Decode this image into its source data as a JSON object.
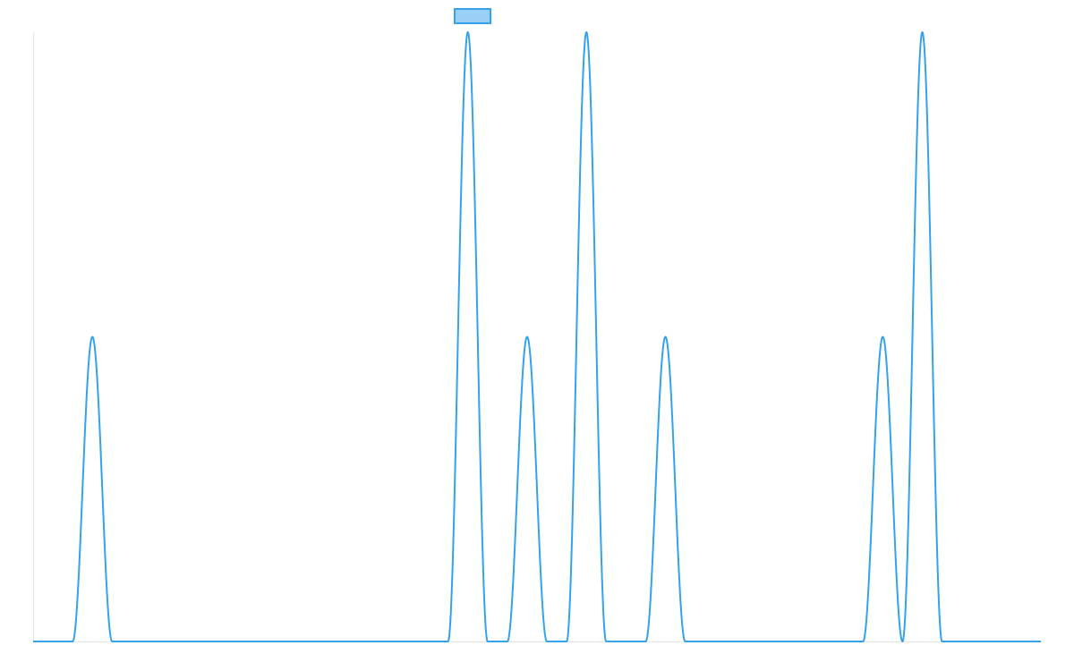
{
  "chart_data": {
    "type": "line",
    "title": "",
    "xlabel": "",
    "ylabel": "",
    "grid": false,
    "legend": "top-center",
    "colors": {
      "line": "#36a2eb",
      "legend_fill": "#9ad0f5",
      "axis": "#e5e5e5"
    },
    "xlim": [
      0,
      51
    ],
    "ylim": [
      0,
      2
    ],
    "series": [
      {
        "name": "",
        "peaks": [
          {
            "x": 3,
            "height": 1,
            "width": 2
          },
          {
            "x": 22,
            "height": 2,
            "width": 2
          },
          {
            "x": 25,
            "height": 1,
            "width": 2
          },
          {
            "x": 28,
            "height": 2,
            "width": 2
          },
          {
            "x": 32,
            "height": 1,
            "width": 2
          },
          {
            "x": 43,
            "height": 1,
            "width": 2
          },
          {
            "x": 45,
            "height": 2,
            "width": 2
          }
        ]
      }
    ]
  }
}
